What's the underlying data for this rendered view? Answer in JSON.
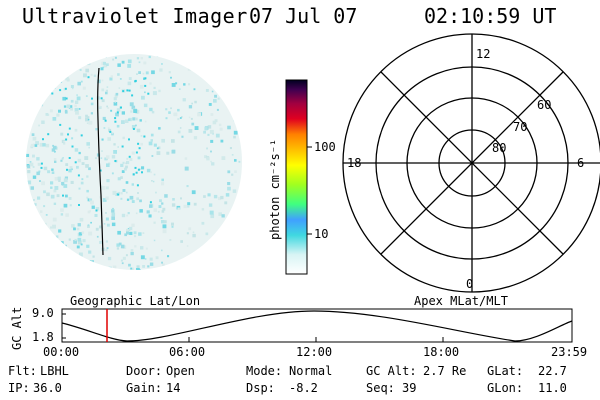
{
  "header": {
    "title": "Ultraviolet Imager",
    "date": "07 Jul 07",
    "time": "02:10:59 UT"
  },
  "colorbar": {
    "label": "photon cm⁻²s⁻¹",
    "ticks": [
      "100",
      "10"
    ]
  },
  "polar": {
    "mlt_labels": {
      "top": "12",
      "bottom": "0",
      "left": "18",
      "right": "6"
    },
    "lat_labels": [
      "60",
      "70",
      "80"
    ]
  },
  "orbit": {
    "left_label": "Geographic Lat/Lon",
    "right_label": "Apex MLat/MLT",
    "ylabel": "GC Alt",
    "ytick_top": "9.0",
    "ytick_bottom": "1.8",
    "time_ticks": [
      "00:00",
      "06:00",
      "12:00",
      "18:00",
      "23:59"
    ]
  },
  "info": {
    "row1": [
      {
        "label": "Flt:",
        "value": "LBHL"
      },
      {
        "label": "Door:",
        "value": "Open"
      },
      {
        "label": "Mode:",
        "value": "Normal"
      },
      {
        "label": "GC Alt:",
        "value": "2.7 Re"
      },
      {
        "label": "GLat:",
        "value": "22.7"
      }
    ],
    "row2": [
      {
        "label": "IP:",
        "value": "36.0"
      },
      {
        "label": "Gain:",
        "value": "14"
      },
      {
        "label": "Dsp:",
        "value": "-8.2"
      },
      {
        "label": "Seq:",
        "value": "39"
      },
      {
        "label": "GLon:",
        "value": "11.0"
      }
    ]
  }
}
